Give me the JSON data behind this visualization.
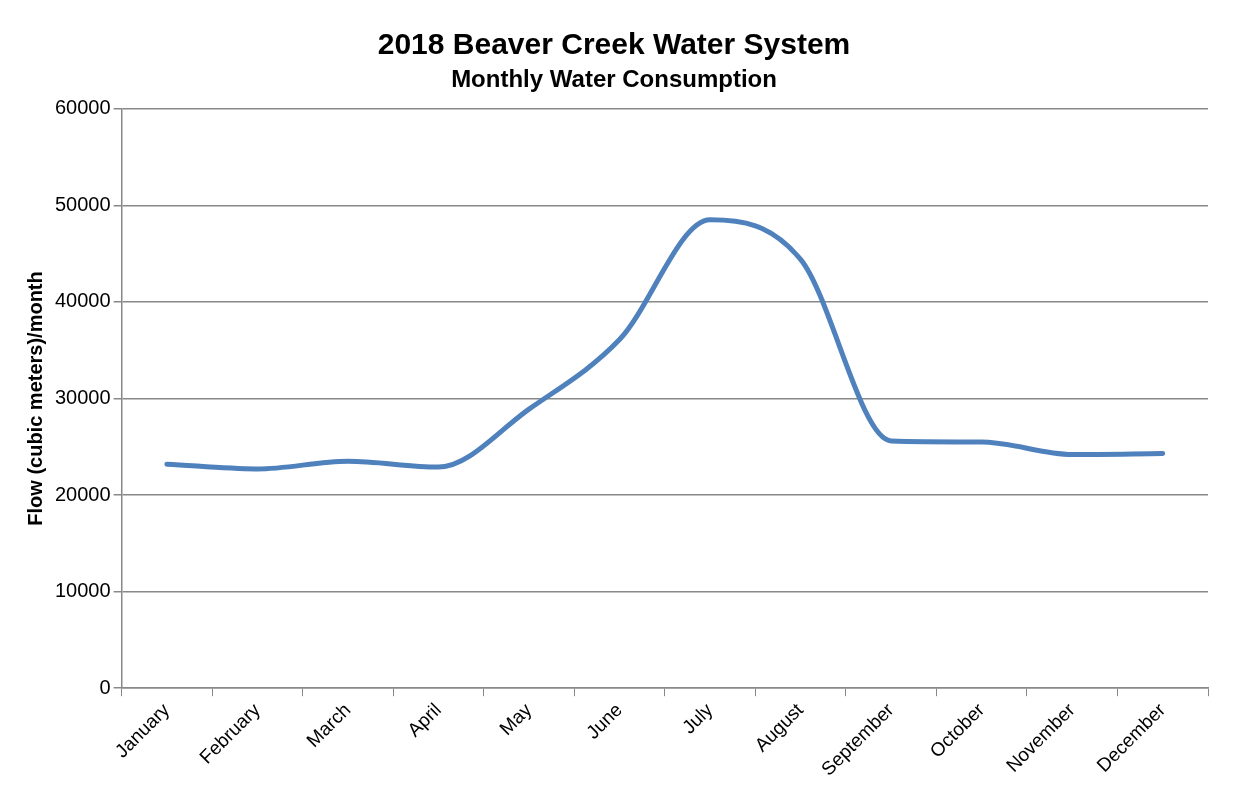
{
  "chart_data": {
    "type": "line",
    "title": "2018 Beaver Creek Water System",
    "subtitle": "Monthly Water Consumption",
    "ylabel": "Flow (cubic meters)/month",
    "categories": [
      "January",
      "February",
      "March",
      "April",
      "May",
      "June",
      "July",
      "August",
      "September",
      "October",
      "November",
      "December"
    ],
    "series": [
      {
        "color": "#4f81bd",
        "values": [
          23200,
          22700,
          23500,
          22900,
          28900,
          36100,
          48500,
          44400,
          25600,
          25500,
          24200,
          24300
        ]
      }
    ],
    "ylim": [
      0,
      60000
    ],
    "yticks": [
      0,
      10000,
      20000,
      30000,
      40000,
      50000,
      60000
    ],
    "grid": "y",
    "legend": false,
    "marker": "none",
    "line_style": "solid"
  }
}
